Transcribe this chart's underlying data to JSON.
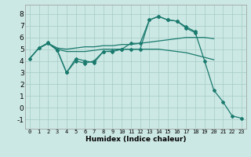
{
  "title": "",
  "xlabel": "Humidex (Indice chaleur)",
  "xlim": [
    -0.5,
    23.5
  ],
  "ylim": [
    -1.8,
    8.8
  ],
  "xticks": [
    0,
    1,
    2,
    3,
    4,
    5,
    6,
    7,
    8,
    9,
    10,
    11,
    12,
    13,
    14,
    15,
    16,
    17,
    18,
    19,
    20,
    21,
    22,
    23
  ],
  "yticks": [
    -1,
    0,
    1,
    2,
    3,
    4,
    5,
    6,
    7,
    8
  ],
  "background_color": "#cce8e4",
  "grid_color": "#aacfca",
  "line_color": "#1a7a6e",
  "line1": {
    "x": [
      0,
      1,
      2,
      3,
      4,
      5,
      6,
      7,
      8,
      9,
      10,
      11,
      12,
      13,
      14,
      15,
      16,
      17,
      18,
      19,
      20
    ],
    "y": [
      4.2,
      5.1,
      5.5,
      5.1,
      5.0,
      5.1,
      5.2,
      5.2,
      5.3,
      5.3,
      5.4,
      5.4,
      5.5,
      5.6,
      5.7,
      5.8,
      5.9,
      6.0,
      6.0,
      6.0,
      5.9
    ]
  },
  "line2": {
    "x": [
      0,
      1,
      2,
      3,
      4,
      5,
      6,
      7,
      8,
      9,
      10,
      11,
      12,
      13,
      14,
      15,
      16,
      17,
      18,
      19,
      20
    ],
    "y": [
      4.2,
      5.1,
      5.5,
      5.0,
      4.8,
      4.8,
      4.8,
      4.9,
      5.0,
      5.0,
      5.0,
      5.0,
      5.0,
      5.0,
      5.0,
      4.9,
      4.8,
      4.7,
      4.5,
      4.3,
      4.1
    ]
  },
  "line3": {
    "x": [
      1,
      2,
      3,
      4,
      5,
      6,
      7,
      8,
      9,
      10,
      11,
      12,
      13,
      14,
      15,
      16,
      17,
      18
    ],
    "y": [
      5.1,
      5.55,
      4.9,
      3.0,
      4.2,
      4.0,
      3.85,
      4.8,
      4.85,
      5.0,
      5.5,
      5.5,
      7.5,
      7.8,
      7.5,
      7.4,
      6.9,
      6.5
    ]
  },
  "line4": {
    "x": [
      0,
      1,
      2,
      3,
      4,
      5,
      6,
      7,
      8,
      9,
      10,
      11,
      12,
      13,
      14,
      15,
      16,
      17,
      18,
      19,
      20,
      21,
      22,
      23
    ],
    "y": [
      4.2,
      5.1,
      5.5,
      4.9,
      3.0,
      4.0,
      3.8,
      4.0,
      4.8,
      4.8,
      5.0,
      5.0,
      5.0,
      7.5,
      7.8,
      7.5,
      7.4,
      6.8,
      6.4,
      4.0,
      1.5,
      0.5,
      -0.7,
      -0.9
    ]
  }
}
